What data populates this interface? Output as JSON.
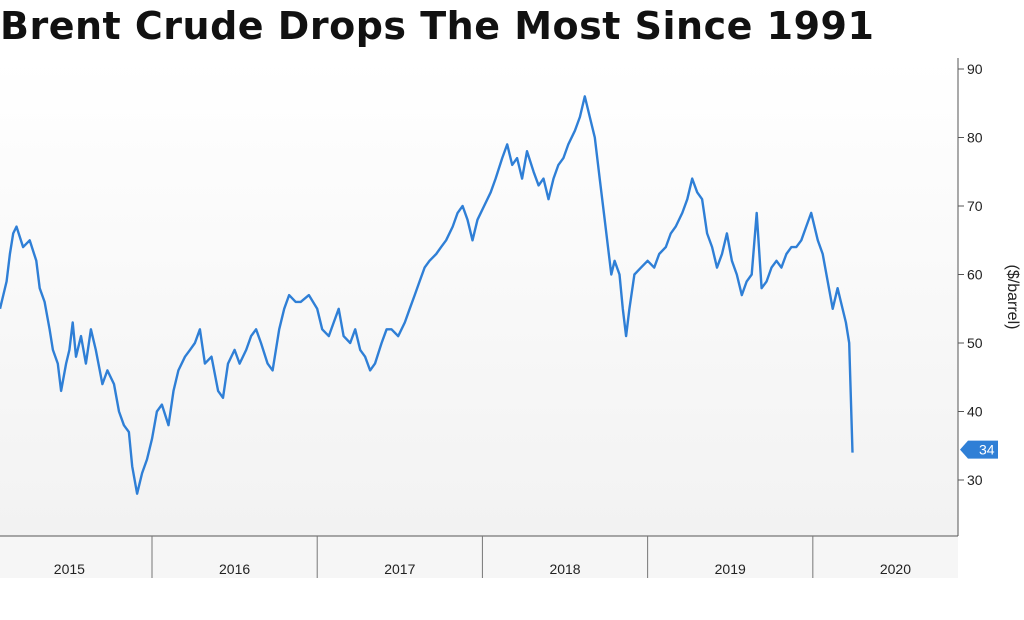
{
  "chart_data": {
    "type": "line",
    "title": "Brent Crude Drops The Most Since 1991",
    "ylabel": "($/barrel)",
    "xlabel": "",
    "ylim": [
      24,
      92
    ],
    "xlim": [
      2014.58,
      2020.3
    ],
    "yticks": [
      30,
      40,
      50,
      60,
      70,
      80,
      90
    ],
    "ytick_labels": [
      "30",
      "40",
      "50",
      "60",
      "70",
      "80",
      "90"
    ],
    "xtick_labels": [
      {
        "label": "2015",
        "x": 2015.0
      },
      {
        "label": "2016",
        "x": 2016.0
      },
      {
        "label": "2017",
        "x": 2017.0
      },
      {
        "label": "2018",
        "x": 2018.0
      },
      {
        "label": "2019",
        "x": 2019.0
      },
      {
        "label": "2020",
        "x": 2020.0
      }
    ],
    "year_boundaries": [
      2015.5,
      2016.5,
      2017.5,
      2018.5,
      2019.5
    ],
    "grid": false,
    "color": "#2f7fd6",
    "last_value_label": "34",
    "series": [
      {
        "name": "",
        "points": [
          [
            2014.58,
            55
          ],
          [
            2014.6,
            57
          ],
          [
            2014.62,
            59
          ],
          [
            2014.64,
            63
          ],
          [
            2014.66,
            66
          ],
          [
            2014.68,
            67
          ],
          [
            2014.72,
            64
          ],
          [
            2014.76,
            65
          ],
          [
            2014.8,
            62
          ],
          [
            2014.82,
            58
          ],
          [
            2014.85,
            56
          ],
          [
            2014.88,
            52
          ],
          [
            2014.9,
            49
          ],
          [
            2014.93,
            47
          ],
          [
            2014.95,
            43
          ],
          [
            2014.98,
            47
          ],
          [
            2015.0,
            49
          ],
          [
            2015.02,
            53
          ],
          [
            2015.04,
            48
          ],
          [
            2015.07,
            51
          ],
          [
            2015.1,
            47
          ],
          [
            2015.13,
            52
          ],
          [
            2015.16,
            49
          ],
          [
            2015.2,
            44
          ],
          [
            2015.23,
            46
          ],
          [
            2015.27,
            44
          ],
          [
            2015.3,
            40
          ],
          [
            2015.33,
            38
          ],
          [
            2015.36,
            37
          ],
          [
            2015.38,
            32
          ],
          [
            2015.41,
            28
          ],
          [
            2015.44,
            31
          ],
          [
            2015.47,
            33
          ],
          [
            2015.5,
            36
          ],
          [
            2015.53,
            40
          ],
          [
            2015.56,
            41
          ],
          [
            2015.6,
            38
          ],
          [
            2015.63,
            43
          ],
          [
            2015.66,
            46
          ],
          [
            2015.7,
            48
          ],
          [
            2015.73,
            49
          ],
          [
            2015.76,
            50
          ],
          [
            2015.79,
            52
          ],
          [
            2015.82,
            47
          ],
          [
            2015.86,
            48
          ],
          [
            2015.9,
            43
          ],
          [
            2015.93,
            42
          ],
          [
            2015.96,
            47
          ],
          [
            2016.0,
            49
          ],
          [
            2016.03,
            47
          ],
          [
            2016.07,
            49
          ],
          [
            2016.1,
            51
          ],
          [
            2016.13,
            52
          ],
          [
            2016.16,
            50
          ],
          [
            2016.2,
            47
          ],
          [
            2016.23,
            46
          ],
          [
            2016.27,
            52
          ],
          [
            2016.3,
            55
          ],
          [
            2016.33,
            57
          ],
          [
            2016.37,
            56
          ],
          [
            2016.4,
            56
          ],
          [
            2016.45,
            57
          ],
          [
            2016.5,
            55
          ],
          [
            2016.53,
            52
          ],
          [
            2016.57,
            51
          ],
          [
            2016.6,
            53
          ],
          [
            2016.63,
            55
          ],
          [
            2016.66,
            51
          ],
          [
            2016.7,
            50
          ],
          [
            2016.73,
            52
          ],
          [
            2016.76,
            49
          ],
          [
            2016.79,
            48
          ],
          [
            2016.82,
            46
          ],
          [
            2016.85,
            47
          ],
          [
            2016.89,
            50
          ],
          [
            2016.92,
            52
          ],
          [
            2016.95,
            52
          ],
          [
            2016.99,
            51
          ],
          [
            2017.03,
            53
          ],
          [
            2017.06,
            55
          ],
          [
            2017.09,
            57
          ],
          [
            2017.12,
            59
          ],
          [
            2017.15,
            61
          ],
          [
            2017.18,
            62
          ],
          [
            2017.22,
            63
          ],
          [
            2017.25,
            64
          ],
          [
            2017.28,
            65
          ],
          [
            2017.32,
            67
          ],
          [
            2017.35,
            69
          ],
          [
            2017.38,
            70
          ],
          [
            2017.41,
            68
          ],
          [
            2017.44,
            65
          ],
          [
            2017.47,
            68
          ],
          [
            2017.51,
            70
          ],
          [
            2017.55,
            72
          ],
          [
            2017.58,
            74
          ],
          [
            2017.62,
            77
          ],
          [
            2017.65,
            79
          ],
          [
            2017.68,
            76
          ],
          [
            2017.71,
            77
          ],
          [
            2017.74,
            74
          ],
          [
            2017.77,
            78
          ],
          [
            2017.81,
            75
          ],
          [
            2017.84,
            73
          ],
          [
            2017.87,
            74
          ],
          [
            2017.9,
            71
          ],
          [
            2017.93,
            74
          ],
          [
            2017.96,
            76
          ],
          [
            2017.99,
            77
          ],
          [
            2018.02,
            79
          ],
          [
            2018.06,
            81
          ],
          [
            2018.09,
            83
          ],
          [
            2018.12,
            86
          ],
          [
            2018.15,
            83
          ],
          [
            2018.18,
            80
          ],
          [
            2018.21,
            74
          ],
          [
            2018.24,
            68
          ],
          [
            2018.26,
            64
          ],
          [
            2018.28,
            60
          ],
          [
            2018.3,
            62
          ],
          [
            2018.33,
            60
          ],
          [
            2018.35,
            55
          ],
          [
            2018.37,
            51
          ],
          [
            2018.39,
            55
          ],
          [
            2018.42,
            60
          ],
          [
            2018.46,
            61
          ],
          [
            2018.5,
            62
          ],
          [
            2018.54,
            61
          ],
          [
            2018.57,
            63
          ],
          [
            2018.61,
            64
          ],
          [
            2018.64,
            66
          ],
          [
            2018.67,
            67
          ],
          [
            2018.71,
            69
          ],
          [
            2018.74,
            71
          ],
          [
            2018.77,
            74
          ],
          [
            2018.8,
            72
          ],
          [
            2018.83,
            71
          ],
          [
            2018.86,
            66
          ],
          [
            2018.89,
            64
          ],
          [
            2018.92,
            61
          ],
          [
            2018.95,
            63
          ],
          [
            2018.98,
            66
          ],
          [
            2019.01,
            62
          ],
          [
            2019.04,
            60
          ],
          [
            2019.07,
            57
          ],
          [
            2019.1,
            59
          ],
          [
            2019.13,
            60
          ],
          [
            2019.16,
            69
          ],
          [
            2019.19,
            58
          ],
          [
            2019.22,
            59
          ],
          [
            2019.25,
            61
          ],
          [
            2019.28,
            62
          ],
          [
            2019.31,
            61
          ],
          [
            2019.34,
            63
          ],
          [
            2019.37,
            64
          ],
          [
            2019.4,
            64
          ],
          [
            2019.43,
            65
          ],
          [
            2019.46,
            67
          ],
          [
            2019.49,
            69
          ],
          [
            2019.53,
            65
          ],
          [
            2019.56,
            63
          ],
          [
            2019.59,
            59
          ],
          [
            2019.62,
            55
          ],
          [
            2019.65,
            58
          ],
          [
            2019.67,
            56
          ],
          [
            2019.7,
            53
          ],
          [
            2019.72,
            50
          ],
          [
            2019.74,
            34
          ]
        ]
      }
    ]
  }
}
